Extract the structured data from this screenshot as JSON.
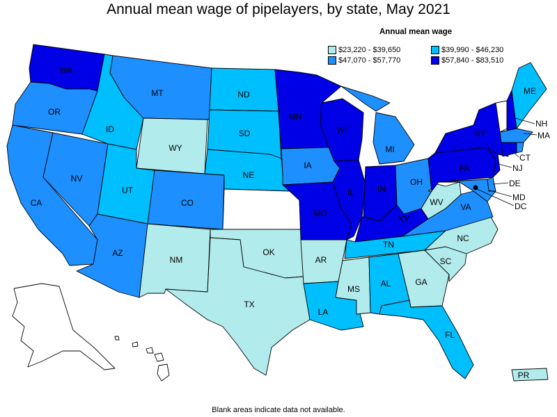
{
  "title": "Annual mean wage of pipelayers, by state, May 2021",
  "legend": {
    "title": "Annual mean wage",
    "items": [
      {
        "label": "$23,220 - $39,650",
        "color": "#b2ebeb"
      },
      {
        "label": "$39,990 - $46,230",
        "color": "#00bfff"
      },
      {
        "label": "$47,070 - $57,770",
        "color": "#1e8fff"
      },
      {
        "label": "$57,840 - $83,510",
        "color": "#0000e6"
      }
    ],
    "nodata_color": "#ffffff"
  },
  "states": {
    "WA": {
      "label": "WA",
      "class": 3
    },
    "OR": {
      "label": "OR",
      "class": 2
    },
    "CA": {
      "label": "CA",
      "class": 2
    },
    "NV": {
      "label": "NV",
      "class": 2
    },
    "ID": {
      "label": "ID",
      "class": 1
    },
    "MT": {
      "label": "MT",
      "class": 2
    },
    "WY": {
      "label": "WY",
      "class": 0
    },
    "UT": {
      "label": "UT",
      "class": 1
    },
    "CO": {
      "label": "CO",
      "class": 2
    },
    "AZ": {
      "label": "AZ",
      "class": 2
    },
    "NM": {
      "label": "NM",
      "class": 0
    },
    "ND": {
      "label": "ND",
      "class": 1
    },
    "SD": {
      "label": "SD",
      "class": 1
    },
    "NE": {
      "label": "NE",
      "class": 1
    },
    "KS": {
      "label": "",
      "class": null
    },
    "OK": {
      "label": "OK",
      "class": 0
    },
    "TX": {
      "label": "TX",
      "class": 0
    },
    "MN": {
      "label": "MN",
      "class": 3
    },
    "IA": {
      "label": "IA",
      "class": 2
    },
    "MO": {
      "label": "MO",
      "class": 3
    },
    "AR": {
      "label": "AR",
      "class": 0
    },
    "LA": {
      "label": "LA",
      "class": 1
    },
    "WI": {
      "label": "WI",
      "class": 3
    },
    "IL": {
      "label": "IL",
      "class": 3
    },
    "MI": {
      "label": "MI",
      "class": 2
    },
    "IN": {
      "label": "IN",
      "class": 3
    },
    "OH": {
      "label": "OH",
      "class": 2
    },
    "KY": {
      "label": "KY",
      "class": 3
    },
    "TN": {
      "label": "TN",
      "class": 1
    },
    "MS": {
      "label": "MS",
      "class": 0
    },
    "AL": {
      "label": "AL",
      "class": 1
    },
    "GA": {
      "label": "GA",
      "class": 0
    },
    "FL": {
      "label": "FL",
      "class": 1
    },
    "SC": {
      "label": "SC",
      "class": 0
    },
    "NC": {
      "label": "NC",
      "class": 0
    },
    "VA": {
      "label": "VA",
      "class": 2
    },
    "WV": {
      "label": "WV",
      "class": 0
    },
    "PA": {
      "label": "PA",
      "class": 3
    },
    "NY": {
      "label": "NY",
      "class": 3
    },
    "VT": {
      "label": "",
      "class": null
    },
    "NH": {
      "label": "NH",
      "class": 3
    },
    "ME": {
      "label": "ME",
      "class": 1
    },
    "MA": {
      "label": "MA",
      "class": 2
    },
    "CT": {
      "label": "CT",
      "class": 3
    },
    "RI": {
      "label": "",
      "class": 2
    },
    "NJ": {
      "label": "NJ",
      "class": 3
    },
    "DE": {
      "label": "DE",
      "class": 2
    },
    "MD": {
      "label": "MD",
      "class": 2
    },
    "DC": {
      "label": "DC",
      "class": 3
    },
    "AK": {
      "label": "",
      "class": null
    },
    "HI": {
      "label": "",
      "class": null
    },
    "PR": {
      "label": "PR",
      "class": 0
    }
  },
  "footnote": "Blank areas indicate data not available."
}
